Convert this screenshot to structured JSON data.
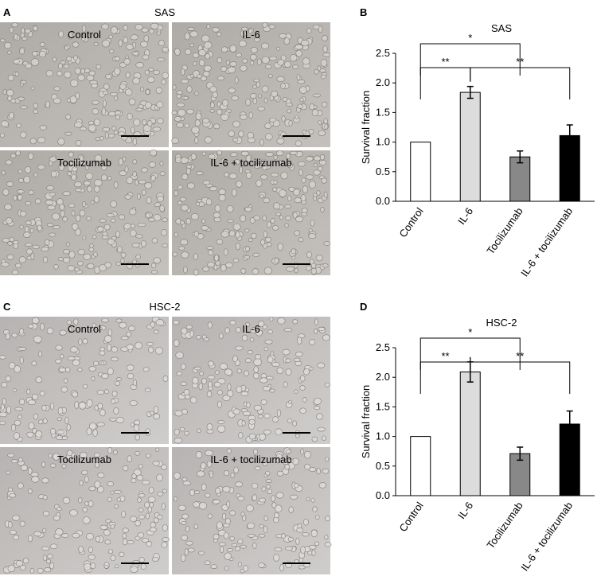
{
  "micrographs": [
    {
      "panel_label": "A",
      "title": "SAS",
      "images": [
        "Control",
        "IL-6",
        "Tocilizumab",
        "IL-6 + tocilizumab"
      ]
    },
    {
      "panel_label": "C",
      "title": "HSC-2",
      "images": [
        "Control",
        "IL-6",
        "Tocilizumab",
        "IL-6 + tocilizumab"
      ]
    }
  ],
  "chart_data": [
    {
      "type": "bar",
      "panel_label": "B",
      "title": "SAS",
      "y_label": "Survival fraction",
      "categories": [
        "Control",
        "IL-6",
        "Tocilizumab",
        "IL-6 + tocilizumab"
      ],
      "values": [
        1.0,
        1.84,
        0.75,
        1.11
      ],
      "errors": [
        0,
        0.1,
        0.1,
        0.18
      ],
      "colors": [
        "#ffffff",
        "#dcdcdc",
        "#888888",
        "#000000"
      ],
      "ylim": [
        0,
        2.5
      ],
      "yticks": [
        {
          "value": 0,
          "label": "0.0"
        },
        {
          "value": 0.5,
          "label": "0.5"
        },
        {
          "value": 1,
          "label": "1.0"
        },
        {
          "value": 1.5,
          "label": "1.5"
        },
        {
          "value": 2,
          "label": "2.0"
        },
        {
          "value": 2.5,
          "label": "2.5"
        }
      ],
      "brackets": [
        {
          "label": "*",
          "from": 0,
          "to": 2
        },
        {
          "label": "**",
          "from": 0,
          "to": 1
        },
        {
          "label": "**",
          "from": 1,
          "to": 3
        }
      ]
    },
    {
      "type": "bar",
      "panel_label": "D",
      "title": "HSC-2",
      "y_label": "Survival fraction",
      "categories": [
        "Control",
        "IL-6",
        "Tocilizumab",
        "IL-6 + tocilizumab"
      ],
      "values": [
        1.0,
        2.09,
        0.71,
        1.21
      ],
      "errors": [
        0,
        0.17,
        0.11,
        0.22
      ],
      "colors": [
        "#ffffff",
        "#dcdcdc",
        "#888888",
        "#000000"
      ],
      "ylim": [
        0,
        2.5
      ],
      "yticks": [
        {
          "value": 0,
          "label": "0.0"
        },
        {
          "value": 0.5,
          "label": "0.5"
        },
        {
          "value": 1,
          "label": "1.0"
        },
        {
          "value": 1.5,
          "label": "1.5"
        },
        {
          "value": 2,
          "label": "2.0"
        },
        {
          "value": 2.5,
          "label": "2.5"
        }
      ],
      "brackets": [
        {
          "label": "*",
          "from": 0,
          "to": 2
        },
        {
          "label": "**",
          "from": 0,
          "to": 1
        },
        {
          "label": "**",
          "from": 1,
          "to": 3
        }
      ]
    }
  ]
}
